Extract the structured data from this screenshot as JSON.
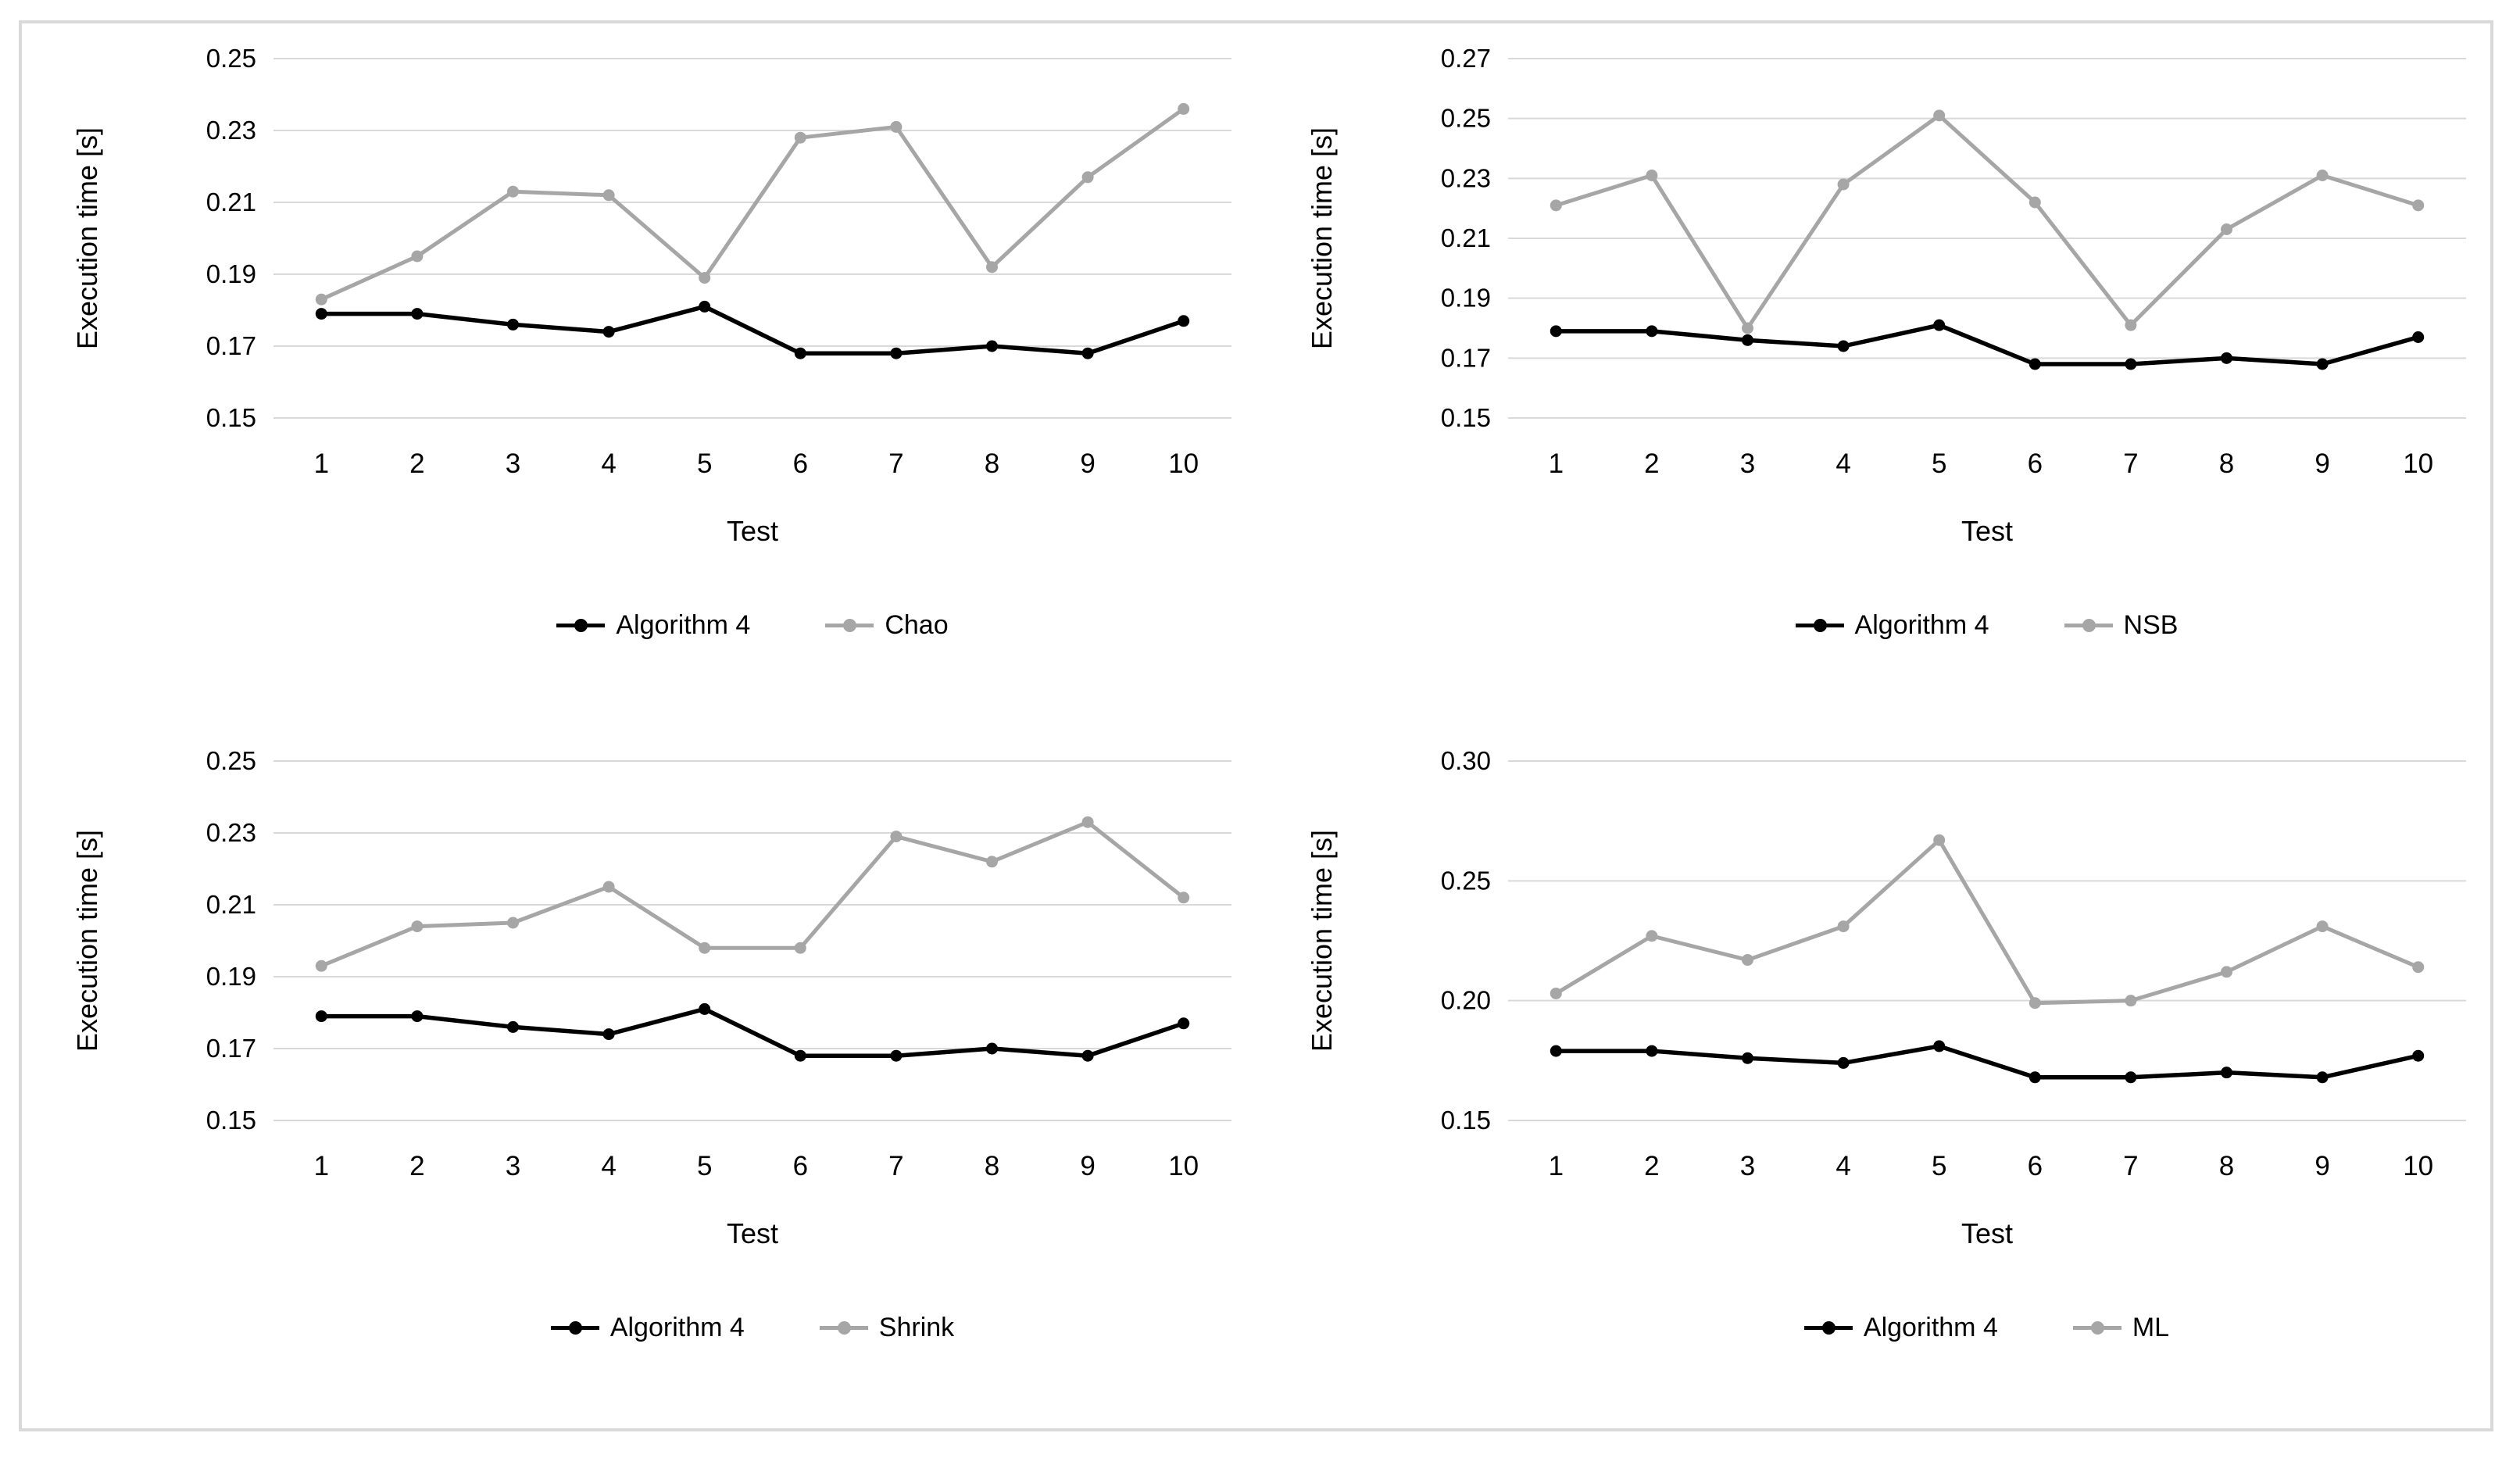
{
  "figure": {
    "background": "#ffffff",
    "border_color": "#d9d9d9"
  },
  "chart_data": [
    {
      "id": "algorithm4-vs-chao",
      "type": "line",
      "categories": [
        "1",
        "2",
        "3",
        "4",
        "5",
        "6",
        "7",
        "8",
        "9",
        "10"
      ],
      "series": [
        {
          "name": "Algorithm 4",
          "color": "#000000",
          "values": [
            0.179,
            0.179,
            0.176,
            0.174,
            0.181,
            0.168,
            0.168,
            0.17,
            0.168,
            0.177
          ]
        },
        {
          "name": "Chao",
          "color": "#a6a6a6",
          "values": [
            0.183,
            0.195,
            0.213,
            0.212,
            0.189,
            0.228,
            0.231,
            0.192,
            0.217,
            0.236
          ]
        }
      ],
      "xlabel": "Test",
      "ylabel": "Execution time [s]",
      "ylim": [
        0.15,
        0.25
      ],
      "ytick_step": 0.02,
      "ytick_decimals": 2,
      "grid": true,
      "gridline_color": "#d9d9d9",
      "legend_position": "bottom"
    },
    {
      "id": "algorithm4-vs-nsb",
      "type": "line",
      "categories": [
        "1",
        "2",
        "3",
        "4",
        "5",
        "6",
        "7",
        "8",
        "9",
        "10"
      ],
      "series": [
        {
          "name": "Algorithm 4",
          "color": "#000000",
          "values": [
            0.179,
            0.179,
            0.176,
            0.174,
            0.181,
            0.168,
            0.168,
            0.17,
            0.168,
            0.177
          ]
        },
        {
          "name": "NSB",
          "color": "#a6a6a6",
          "values": [
            0.221,
            0.231,
            0.18,
            0.228,
            0.251,
            0.222,
            0.181,
            0.213,
            0.231,
            0.221
          ]
        }
      ],
      "xlabel": "Test",
      "ylabel": "Execution time [s]",
      "ylim": [
        0.15,
        0.27
      ],
      "ytick_step": 0.02,
      "ytick_decimals": 2,
      "grid": true,
      "gridline_color": "#d9d9d9",
      "legend_position": "bottom"
    },
    {
      "id": "algorithm4-vs-shrink",
      "type": "line",
      "categories": [
        "1",
        "2",
        "3",
        "4",
        "5",
        "6",
        "7",
        "8",
        "9",
        "10"
      ],
      "series": [
        {
          "name": "Algorithm 4",
          "color": "#000000",
          "values": [
            0.179,
            0.179,
            0.176,
            0.174,
            0.181,
            0.168,
            0.168,
            0.17,
            0.168,
            0.177
          ]
        },
        {
          "name": "Shrink",
          "color": "#a6a6a6",
          "values": [
            0.193,
            0.204,
            0.205,
            0.215,
            0.198,
            0.198,
            0.229,
            0.222,
            0.233,
            0.212
          ]
        }
      ],
      "xlabel": "Test",
      "ylabel": "Execution time [s]",
      "ylim": [
        0.15,
        0.25
      ],
      "ytick_step": 0.02,
      "ytick_decimals": 2,
      "grid": true,
      "gridline_color": "#d9d9d9",
      "legend_position": "bottom"
    },
    {
      "id": "algorithm4-vs-ml",
      "type": "line",
      "categories": [
        "1",
        "2",
        "3",
        "4",
        "5",
        "6",
        "7",
        "8",
        "9",
        "10"
      ],
      "series": [
        {
          "name": "Algorithm 4",
          "color": "#000000",
          "values": [
            0.179,
            0.179,
            0.176,
            0.174,
            0.181,
            0.168,
            0.168,
            0.17,
            0.168,
            0.177
          ]
        },
        {
          "name": "ML",
          "color": "#a6a6a6",
          "values": [
            0.203,
            0.227,
            0.217,
            0.231,
            0.267,
            0.199,
            0.2,
            0.212,
            0.231,
            0.214
          ]
        }
      ],
      "xlabel": "Test",
      "ylabel": "Execution time [s]",
      "ylim": [
        0.15,
        0.3
      ],
      "ytick_step": 0.05,
      "ytick_decimals": 2,
      "grid": true,
      "gridline_color": "#d9d9d9",
      "legend_position": "bottom"
    }
  ]
}
